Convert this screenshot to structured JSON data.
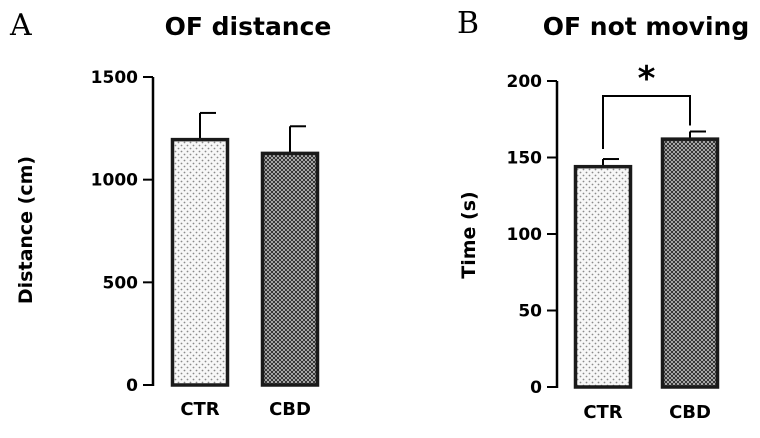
{
  "chart_data": [
    {
      "type": "bar",
      "panel_label": "A",
      "title": "OF distance",
      "ylabel": "Distance (cm)",
      "xlabel": "",
      "categories": [
        "CTR",
        "CBD"
      ],
      "values": [
        1195,
        1128
      ],
      "error_upper": [
        1325,
        1260
      ],
      "ylim": [
        0,
        1500
      ],
      "yticks": [
        0,
        500,
        1000,
        1500
      ],
      "patterns": [
        "sparse-dots",
        "dense-crosshatch"
      ],
      "grid": false,
      "legend": "none"
    },
    {
      "type": "bar",
      "panel_label": "B",
      "title": "OF not moving",
      "ylabel": "Time (s)",
      "xlabel": "",
      "categories": [
        "CTR",
        "CBD"
      ],
      "values": [
        144,
        162
      ],
      "error_upper": [
        149,
        167
      ],
      "ylim": [
        0,
        200
      ],
      "yticks": [
        0,
        50,
        100,
        150,
        200
      ],
      "patterns": [
        "sparse-dots",
        "dense-crosshatch"
      ],
      "significance": {
        "between": [
          "CTR",
          "CBD"
        ],
        "mark": "*"
      },
      "grid": false,
      "legend": "none"
    }
  ],
  "colors": {
    "ink": "#000000",
    "bar_outline": "#1a1a1a",
    "background": "#ffffff"
  }
}
